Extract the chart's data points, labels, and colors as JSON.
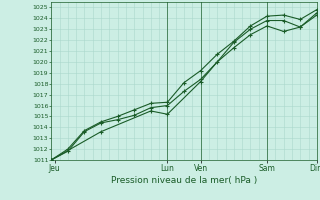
{
  "bg_color": "#cceee4",
  "grid_color_major": "#aad8cc",
  "grid_color_minor": "#bde8dc",
  "line_color": "#1a5c28",
  "title": "Pression niveau de la mer( hPa )",
  "ylim": [
    1011,
    1025.5
  ],
  "xlim": [
    0,
    8.0
  ],
  "yticks": [
    1011,
    1012,
    1013,
    1014,
    1015,
    1016,
    1017,
    1018,
    1019,
    1020,
    1021,
    1022,
    1023,
    1024,
    1025
  ],
  "day_ticks_pos": [
    0.1,
    3.5,
    4.5,
    6.5,
    8.0
  ],
  "day_labels": [
    "Jeu",
    "Lun",
    "Ven",
    "Sam",
    "Dim"
  ],
  "vlines": [
    3.5,
    4.5,
    6.5,
    8.0
  ],
  "series1_x": [
    0.0,
    0.5,
    1.0,
    1.5,
    2.0,
    2.5,
    3.0,
    3.5,
    4.0,
    4.5,
    5.0,
    5.5,
    6.0,
    6.5,
    7.0,
    7.5,
    8.0
  ],
  "series1_y": [
    1011.0,
    1011.8,
    1013.6,
    1014.4,
    1014.7,
    1015.1,
    1015.8,
    1016.0,
    1017.3,
    1018.4,
    1020.0,
    1021.3,
    1022.5,
    1023.3,
    1022.8,
    1023.2,
    1024.5
  ],
  "series2_x": [
    0.0,
    0.5,
    1.0,
    1.5,
    2.0,
    2.5,
    3.0,
    3.5,
    4.0,
    4.5,
    5.0,
    5.5,
    6.0,
    6.5,
    7.0,
    7.5,
    8.0
  ],
  "series2_y": [
    1011.0,
    1012.0,
    1013.7,
    1014.5,
    1015.0,
    1015.6,
    1016.2,
    1016.3,
    1018.1,
    1019.2,
    1020.7,
    1021.9,
    1023.3,
    1024.2,
    1024.3,
    1023.9,
    1024.8
  ],
  "series3_x": [
    0.0,
    1.5,
    3.0,
    3.5,
    4.5,
    5.5,
    6.0,
    6.5,
    7.0,
    7.5,
    8.0
  ],
  "series3_y": [
    1011.0,
    1013.6,
    1015.5,
    1015.2,
    1018.2,
    1021.8,
    1023.0,
    1023.8,
    1023.8,
    1023.2,
    1024.3
  ],
  "lw": 0.8,
  "ms": 2.0
}
